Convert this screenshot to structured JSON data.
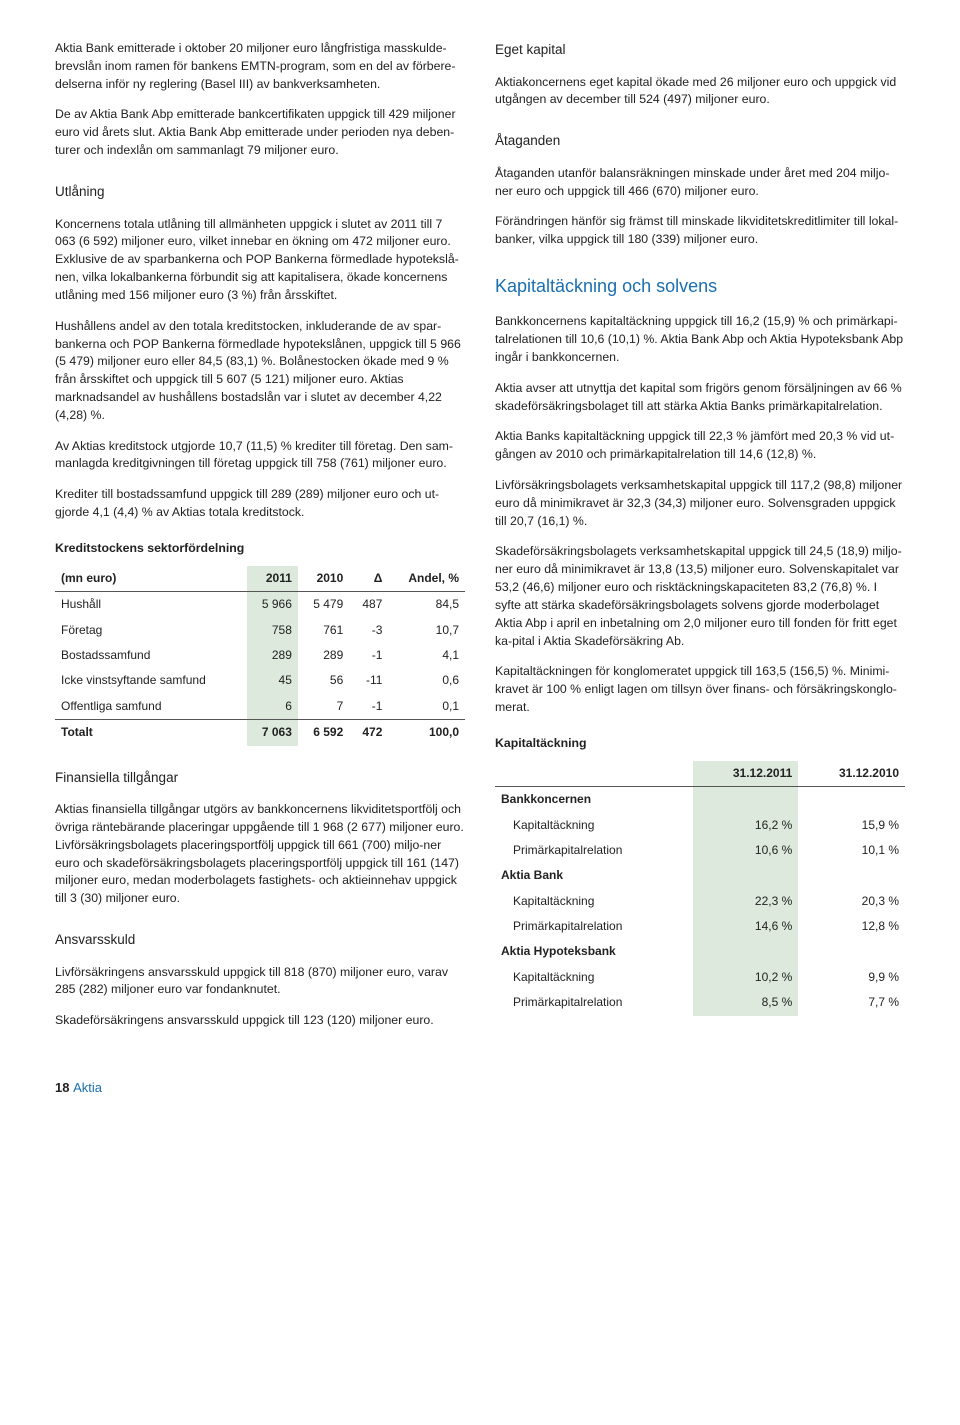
{
  "left": {
    "p1": "Aktia Bank emitterade i oktober 20 miljoner euro långfristiga masskulde-brevslån inom ramen för bankens EMTN-program, som en del av förbere-delserna inför ny reglering (Basel III) av bankverksamheten.",
    "p2": "De av Aktia Bank Abp emitterade bankcertifikaten uppgick till 429 miljoner euro vid årets slut. Aktia Bank Abp emitterade under perioden nya deben-turer och indexlån om sammanlagt 79 miljoner euro.",
    "utlaning_title": "Utlåning",
    "p3": "Koncernens totala utlåning till allmänheten uppgick i slutet av 2011 till 7 063 (6 592) miljoner euro, vilket innebar en ökning om 472 miljoner euro. Exklusive de av sparbankerna och POP Bankerna förmedlade hypotekslå-nen, vilka lokalbankerna förbundit sig att kapitalisera, ökade koncernens utlåning med 156 miljoner euro (3 %) från årsskiftet.",
    "p4": "Hushållens andel av den totala kreditstocken, inkluderande de av spar-bankerna och POP Bankerna förmedlade hypotekslånen, uppgick till 5 966 (5 479) miljoner euro eller 84,5 (83,1) %. Bolånestocken ökade med 9 % från årsskiftet och uppgick till 5 607 (5 121) miljoner euro. Aktias marknadsandel av hushållens bostadslån var i slutet av december 4,22 (4,28) %.",
    "p5": "Av Aktias kreditstock utgjorde 10,7 (11,5) % krediter till företag. Den sam-manlagda kreditgivningen till företag uppgick till 758 (761) miljoner euro.",
    "p6": "Krediter till bostadssamfund uppgick till 289 (289) miljoner euro och ut-gjorde 4,1 (4,4) % av Aktias totala kreditstock.",
    "sector_title": "Kreditstockens sektorfördelning",
    "sector": {
      "cols": [
        "(mn euro)",
        "2011",
        "2010",
        "Δ",
        "Andel, %"
      ],
      "rows": [
        [
          "Hushåll",
          "5 966",
          "5 479",
          "487",
          "84,5"
        ],
        [
          "Företag",
          "758",
          "761",
          "-3",
          "10,7"
        ],
        [
          "Bostadssamfund",
          "289",
          "289",
          "-1",
          "4,1"
        ],
        [
          "Icke vinstsyftande samfund",
          "45",
          "56",
          "-11",
          "0,6"
        ],
        [
          "Offentliga samfund",
          "6",
          "7",
          "-1",
          "0,1"
        ]
      ],
      "total": [
        "Totalt",
        "7 063",
        "6 592",
        "472",
        "100,0"
      ]
    },
    "fin_title": "Finansiella tillgångar",
    "p7": "Aktias  finansiella tillgångar utgörs av bankkoncernens likviditetsportfölj och övriga räntebärande placeringar uppgående till 1 968 (2 677) miljoner euro. Livförsäkringsbolagets placeringsportfölj uppgick till 661 (700) miljo-ner euro och skadeförsäkringsbolagets placeringsportfölj uppgick till 161 (147) miljoner euro, medan moderbolagets fastighets- och aktieinnehav uppgick till 3 (30) miljoner euro.",
    "ansvar_title": "Ansvarsskuld",
    "p8": "Livförsäkringens ansvarsskuld uppgick till 818 (870) miljoner euro, varav 285 (282) miljoner euro var fondanknutet.",
    "p9": "Skadeförsäkringens ansvarsskuld uppgick till 123 (120) miljoner euro."
  },
  "right": {
    "eget_title": "Eget kapital",
    "p1": "Aktiakoncernens eget kapital ökade med 26 miljoner euro och uppgick vid utgången av december till 524 (497) miljoner euro.",
    "atag_title": "Åtaganden",
    "p2": "Åtaganden utanför balansräkningen minskade under året med 204 miljo-ner euro och uppgick till 466 (670) miljoner euro.",
    "p3": "Förändringen hänför sig främst till minskade likviditetskreditlimiter till lokal-banker, vilka uppgick till 180 (339) miljoner euro.",
    "kap_title": "Kapitaltäckning och solvens",
    "p4": "Bankkoncernens kapitaltäckning uppgick till 16,2 (15,9) % och primärkapi-talrelationen till 10,6 (10,1) %. Aktia Bank Abp och Aktia Hypoteksbank Abp ingår i bankkoncernen.",
    "p5": "Aktia avser att utnyttja det kapital som frigörs genom försäljningen av 66 % skadeförsäkringsbolaget till att stärka Aktia Banks primärkapitalrelation.",
    "p6": "Aktia Banks kapitaltäckning uppgick till 22,3 % jämfört med 20,3 % vid ut-gången av 2010 och primärkapitalrelation till 14,6 (12,8) %.",
    "p7": "Livförsäkringsbolagets verksamhetskapital uppgick till 117,2 (98,8) miljoner euro då minimikravet är 32,3 (34,3) miljoner euro. Solvensgraden uppgick till 20,7 (16,1) %.",
    "p8": "Skadeförsäkringsbolagets verksamhetskapital uppgick till 24,5 (18,9) miljo-ner euro då minimikravet är 13,8 (13,5) miljoner euro. Solvenskapitalet var 53,2 (46,6) miljoner euro och risktäckningskapaciteten 83,2 (76,8) %. I syfte att stärka skadeförsäkringsbolagets solvens gjorde moderbolaget Aktia Abp i april en inbetalning om 2,0 miljoner euro till fonden för fritt eget ka-pital i Aktia Skadeförsäkring Ab.",
    "p9": "Kapitaltäckningen för konglomeratet uppgick till 163,5 (156,5) %. Minimi-kravet är 100 % enligt lagen om tillsyn över finans- och försäkringskonglo-merat.",
    "cap_table_title": "Kapitaltäckning",
    "cap": {
      "cols": [
        "",
        "31.12.2011",
        "31.12.2010"
      ],
      "groups": [
        {
          "label": "Bankkoncernen",
          "rows": [
            [
              "Kapitaltäckning",
              "16,2 %",
              "15,9 %"
            ],
            [
              "Primärkapitalrelation",
              "10,6 %",
              "10,1 %"
            ]
          ]
        },
        {
          "label": "Aktia Bank",
          "rows": [
            [
              "Kapitaltäckning",
              "22,3 %",
              "20,3 %"
            ],
            [
              "Primärkapitalrelation",
              "14,6 %",
              "12,8 %"
            ]
          ]
        },
        {
          "label": "Aktia Hypoteksbank",
          "rows": [
            [
              "Kapitaltäckning",
              "10,2 %",
              "9,9 %"
            ],
            [
              "Primärkapitalrelation",
              "8,5 %",
              "7,7 %"
            ]
          ]
        }
      ]
    }
  },
  "footer": {
    "page": "18",
    "brand": "Aktia"
  },
  "colors": {
    "highlight": "#dce9dc",
    "blue": "#1a6fb0"
  }
}
